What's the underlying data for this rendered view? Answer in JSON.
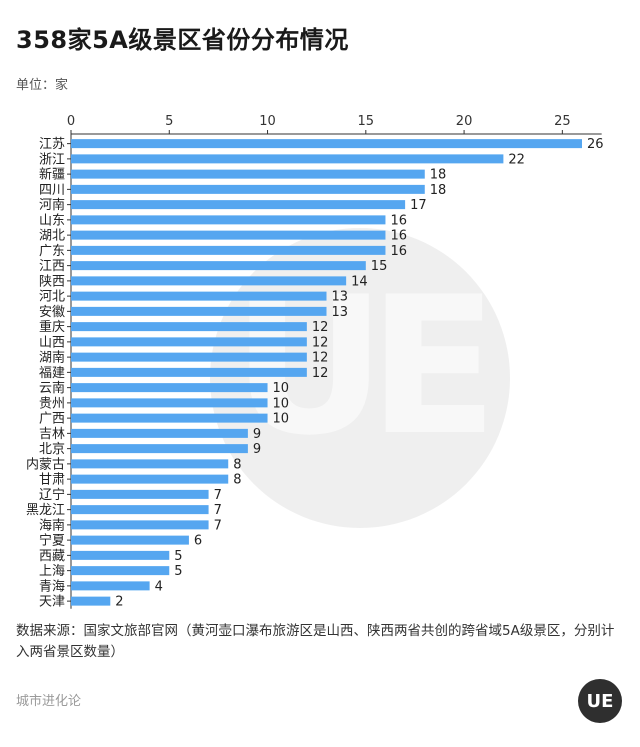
{
  "header": {
    "title": "358家5A级景区省份分布情况",
    "unit": "单位：家"
  },
  "source_note": "数据来源：国家文旅部官网（黄河壶口瀑布旅游区是山西、陕西两省共创的跨省域5A级景区，分别计入两省景区数量）",
  "footer": {
    "brand": "城市进化论",
    "logo_text": "UE"
  },
  "colors": {
    "bar": "#55a6f0",
    "axis": "#333333"
  },
  "chart_data": {
    "type": "bar",
    "orientation": "horizontal",
    "title": "358家5A级景区省份分布情况",
    "xlim": [
      0,
      27
    ],
    "x_ticks": [
      0,
      5,
      10,
      15,
      20,
      25
    ],
    "x_axis_position": "top",
    "grid": false,
    "categories": [
      "江苏",
      "浙江",
      "新疆",
      "四川",
      "河南",
      "山东",
      "湖北",
      "广东",
      "江西",
      "陕西",
      "河北",
      "安徽",
      "重庆",
      "山西",
      "湖南",
      "福建",
      "云南",
      "贵州",
      "广西",
      "吉林",
      "北京",
      "内蒙古",
      "甘肃",
      "辽宁",
      "黑龙江",
      "海南",
      "宁夏",
      "西藏",
      "上海",
      "青海",
      "天津"
    ],
    "values": [
      26,
      22,
      18,
      18,
      17,
      16,
      16,
      16,
      15,
      14,
      13,
      13,
      12,
      12,
      12,
      12,
      10,
      10,
      10,
      9,
      9,
      8,
      8,
      7,
      7,
      7,
      6,
      5,
      5,
      4,
      2
    ]
  }
}
